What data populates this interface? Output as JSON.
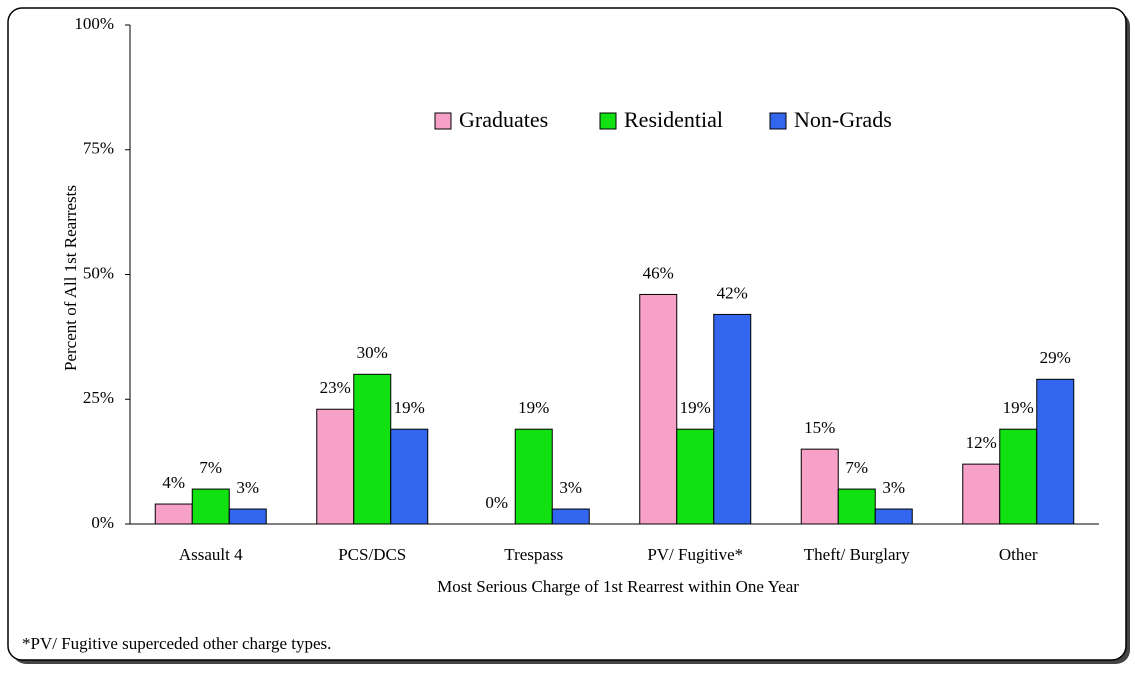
{
  "chart_data": {
    "type": "bar",
    "x_label": "Most Serious Charge of 1st Rearrest within One Year",
    "y_label": "Percent of All 1st Rearrests",
    "footnote": "*PV/ Fugitive superceded other charge types.",
    "categories": [
      "Assault 4",
      "PCS/DCS",
      "Trespass",
      "PV/ Fugitive*",
      "Theft/ Burglary",
      "Other"
    ],
    "series": [
      {
        "name": "Graduates",
        "color": "#f7a1c9",
        "values": [
          4,
          23,
          0,
          46,
          15,
          12
        ],
        "value_labels": [
          "4%",
          "23%",
          "0%",
          "46%",
          "15%",
          "12%"
        ]
      },
      {
        "name": "Residential",
        "color": "#11e011",
        "values": [
          7,
          30,
          19,
          19,
          7,
          19
        ],
        "value_labels": [
          "7%",
          "30%",
          "19%",
          "19%",
          "7%",
          "19%"
        ]
      },
      {
        "name": "Non-Grads",
        "color": "#3366ee",
        "values": [
          3,
          19,
          3,
          42,
          3,
          29
        ],
        "value_labels": [
          "3%",
          "19%",
          "3%",
          "42%",
          "3%",
          "29%"
        ]
      }
    ],
    "ylim": [
      0,
      100
    ],
    "yticks": [
      {
        "value": 0,
        "label": "0%"
      },
      {
        "value": 25,
        "label": "25%"
      },
      {
        "value": 50,
        "label": "50%"
      },
      {
        "value": 75,
        "label": "75%"
      },
      {
        "value": 100,
        "label": "100%"
      }
    ],
    "grid": false,
    "legend": "top"
  }
}
